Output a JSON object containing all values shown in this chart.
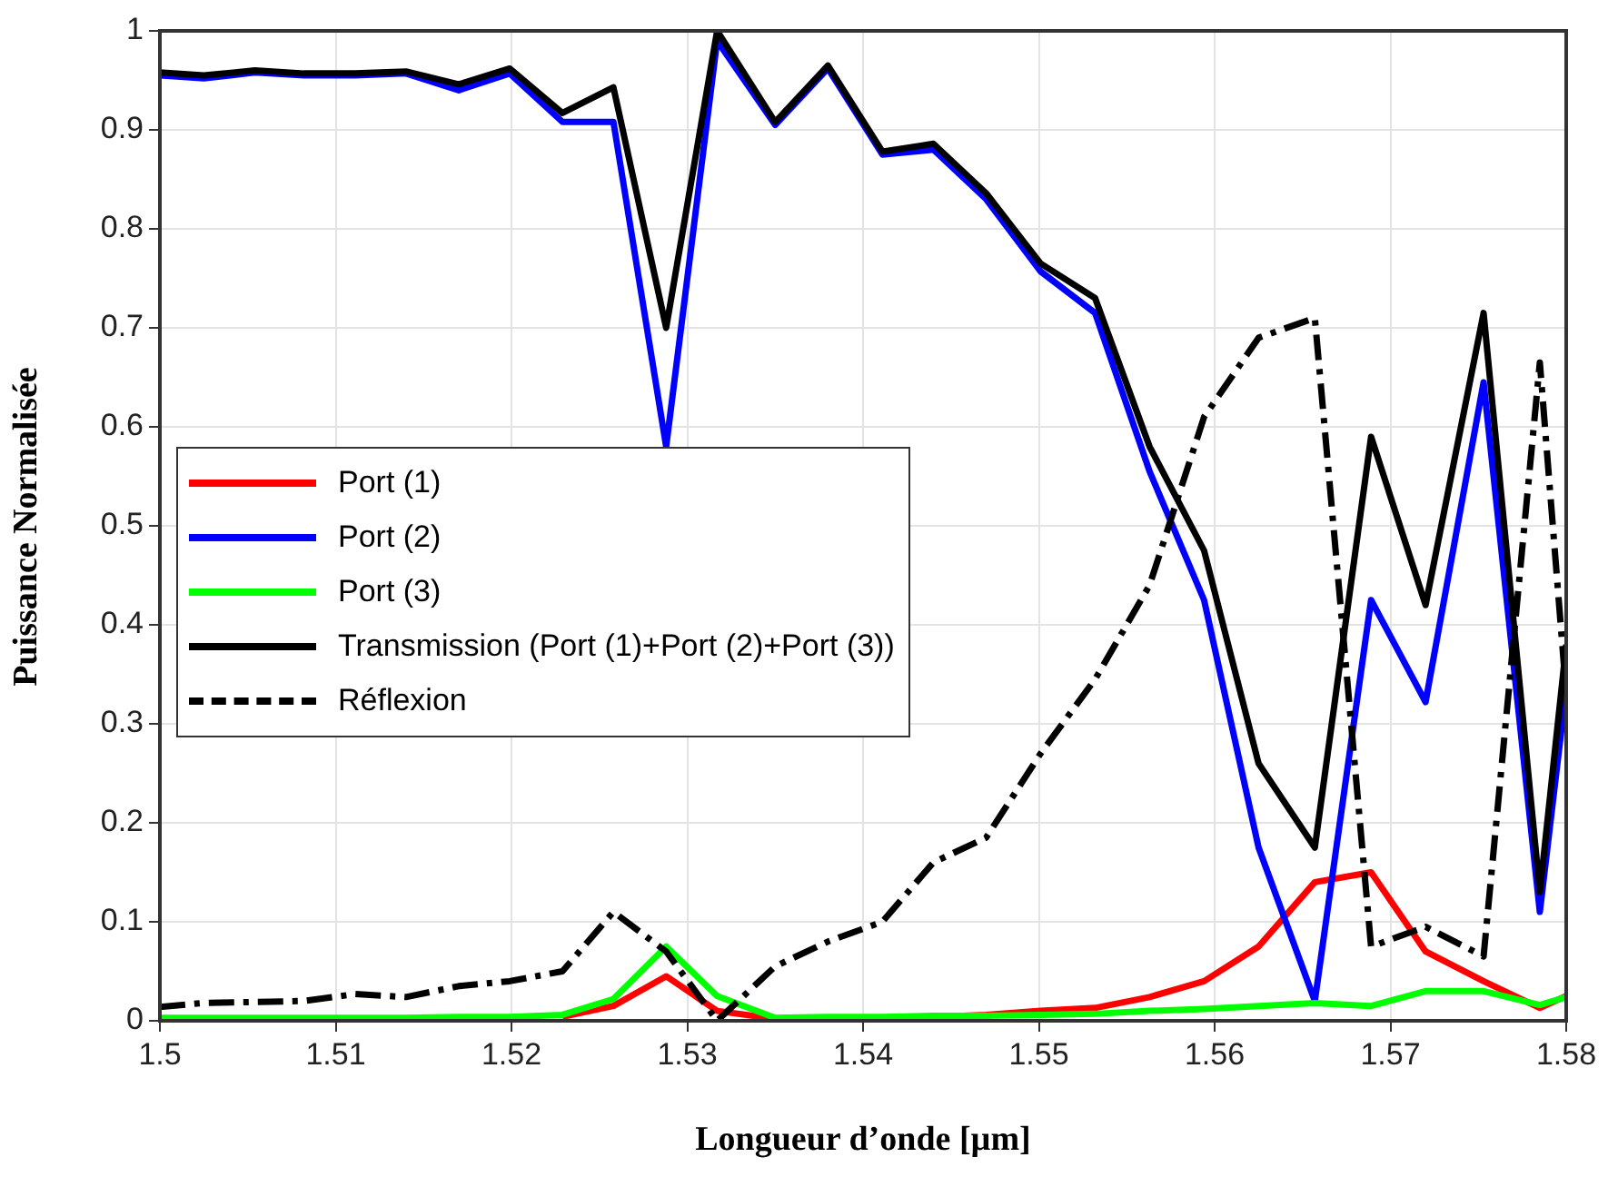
{
  "chart_data": {
    "type": "line",
    "xlabel": "Longueur d’onde [µm]",
    "ylabel": "Puissance Normalisée",
    "x": [
      1.5,
      1.5025,
      1.5054,
      1.5082,
      1.5111,
      1.514,
      1.517,
      1.5199,
      1.5229,
      1.5258,
      1.5288,
      1.5317,
      1.535,
      1.538,
      1.5411,
      1.544,
      1.547,
      1.5501,
      1.5532,
      1.5563,
      1.5594,
      1.5625,
      1.5657,
      1.5689,
      1.572,
      1.5753,
      1.5785,
      1.58
    ],
    "series": [
      {
        "name": "Port (1)",
        "color": "#ff0000",
        "values": [
          null,
          null,
          null,
          null,
          null,
          null,
          null,
          null,
          0.004,
          0.015,
          0.045,
          0.01,
          0.002,
          0.002,
          0.003,
          0.004,
          0.006,
          0.01,
          0.013,
          0.024,
          0.04,
          0.075,
          0.14,
          0.15,
          0.07,
          0.04,
          0.013,
          0.025
        ]
      },
      {
        "name": "Port (2)",
        "color": "#0000ff",
        "values": [
          0.955,
          0.952,
          0.958,
          0.955,
          0.955,
          0.957,
          0.94,
          0.957,
          0.908,
          0.908,
          0.58,
          0.99,
          0.905,
          0.962,
          0.875,
          0.88,
          0.83,
          0.757,
          0.715,
          0.555,
          0.425,
          0.175,
          0.02,
          0.425,
          0.322,
          0.645,
          0.11,
          0.335
        ]
      },
      {
        "name": "Port (3)",
        "color": "#00ff00",
        "values": [
          0.003,
          0.003,
          0.003,
          0.003,
          0.003,
          0.003,
          0.004,
          0.004,
          0.006,
          0.022,
          0.075,
          0.025,
          0.003,
          0.004,
          0.004,
          0.005,
          0.005,
          0.006,
          0.007,
          0.01,
          0.012,
          0.015,
          0.018,
          0.015,
          0.03,
          0.03,
          0.016,
          0.024
        ]
      },
      {
        "name": "Transmission (Port (1)+Port (2)+Port (3))",
        "color": "#000000",
        "values": [
          0.958,
          0.955,
          0.96,
          0.957,
          0.957,
          0.959,
          0.946,
          0.962,
          0.917,
          0.943,
          0.7,
          1.0,
          0.908,
          0.965,
          0.878,
          0.886,
          0.836,
          0.765,
          0.73,
          0.58,
          0.475,
          0.26,
          0.175,
          0.59,
          0.42,
          0.715,
          0.13,
          0.38
        ]
      },
      {
        "name": "Réflexion",
        "color": "#000000",
        "line_style": "dashed",
        "values": [
          0.014,
          0.018,
          0.019,
          0.02,
          0.027,
          0.024,
          0.035,
          0.04,
          0.05,
          0.11,
          0.07,
          0.0,
          0.055,
          0.08,
          0.1,
          0.16,
          0.185,
          0.27,
          0.345,
          0.44,
          0.61,
          0.69,
          0.71,
          0.075,
          0.095,
          0.065,
          0.665,
          0.33
        ]
      }
    ],
    "xlim": [
      1.5,
      1.58
    ],
    "xticks": [
      1.5,
      1.51,
      1.52,
      1.53,
      1.54,
      1.55,
      1.56,
      1.57,
      1.58
    ],
    "ylim": [
      0,
      1
    ],
    "yticks": [
      0,
      0.1,
      0.2,
      0.3,
      0.4,
      0.5,
      0.6,
      0.7,
      0.8,
      0.9,
      1
    ],
    "grid": true,
    "legend": "left",
    "marker": "none",
    "line_style": "solid"
  }
}
